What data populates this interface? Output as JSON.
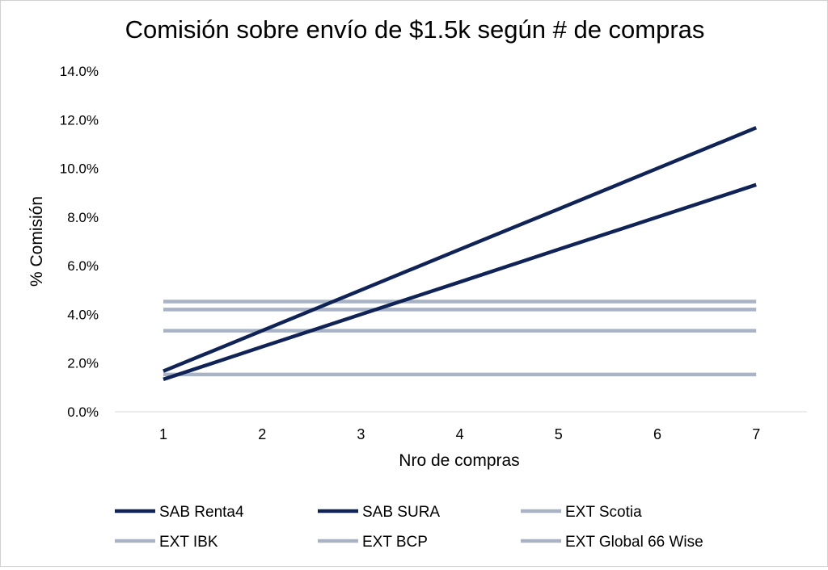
{
  "chart_data": {
    "type": "line",
    "title": "Comisión sobre envío de $1.5k según # de compras",
    "xlabel": "Nro de compras",
    "ylabel": "% Comisión",
    "x": [
      1,
      2,
      3,
      4,
      5,
      6,
      7
    ],
    "x_tick_labels": [
      "1",
      "2",
      "3",
      "4",
      "5",
      "6",
      "7"
    ],
    "ylim": [
      0,
      14
    ],
    "y_ticks": [
      0,
      2,
      4,
      6,
      8,
      10,
      12,
      14
    ],
    "y_tick_labels": [
      "0.0%",
      "2.0%",
      "4.0%",
      "6.0%",
      "8.0%",
      "10.0%",
      "12.0%",
      "14.0%"
    ],
    "grid": false,
    "legend_position": "bottom",
    "series": [
      {
        "name": "SAB Renta4",
        "color": "#0f2357",
        "values": [
          1.67,
          3.33,
          5.0,
          6.67,
          8.33,
          10.0,
          11.67
        ]
      },
      {
        "name": "SAB SURA",
        "color": "#0f2357",
        "values": [
          1.33,
          2.67,
          4.0,
          5.33,
          6.67,
          8.0,
          9.33
        ]
      },
      {
        "name": "EXT Scotia",
        "color": "#a9b3c6",
        "values": [
          4.53,
          4.53,
          4.53,
          4.53,
          4.53,
          4.53,
          4.53
        ]
      },
      {
        "name": "EXT IBK",
        "color": "#a9b3c6",
        "values": [
          4.2,
          4.2,
          4.2,
          4.2,
          4.2,
          4.2,
          4.2
        ]
      },
      {
        "name": "EXT BCP",
        "color": "#a9b3c6",
        "values": [
          3.33,
          3.33,
          3.33,
          3.33,
          3.33,
          3.33,
          3.33
        ]
      },
      {
        "name": "EXT Global 66 Wise",
        "color": "#a9b3c6",
        "values": [
          1.53,
          1.53,
          1.53,
          1.53,
          1.53,
          1.53,
          1.53
        ]
      }
    ]
  }
}
